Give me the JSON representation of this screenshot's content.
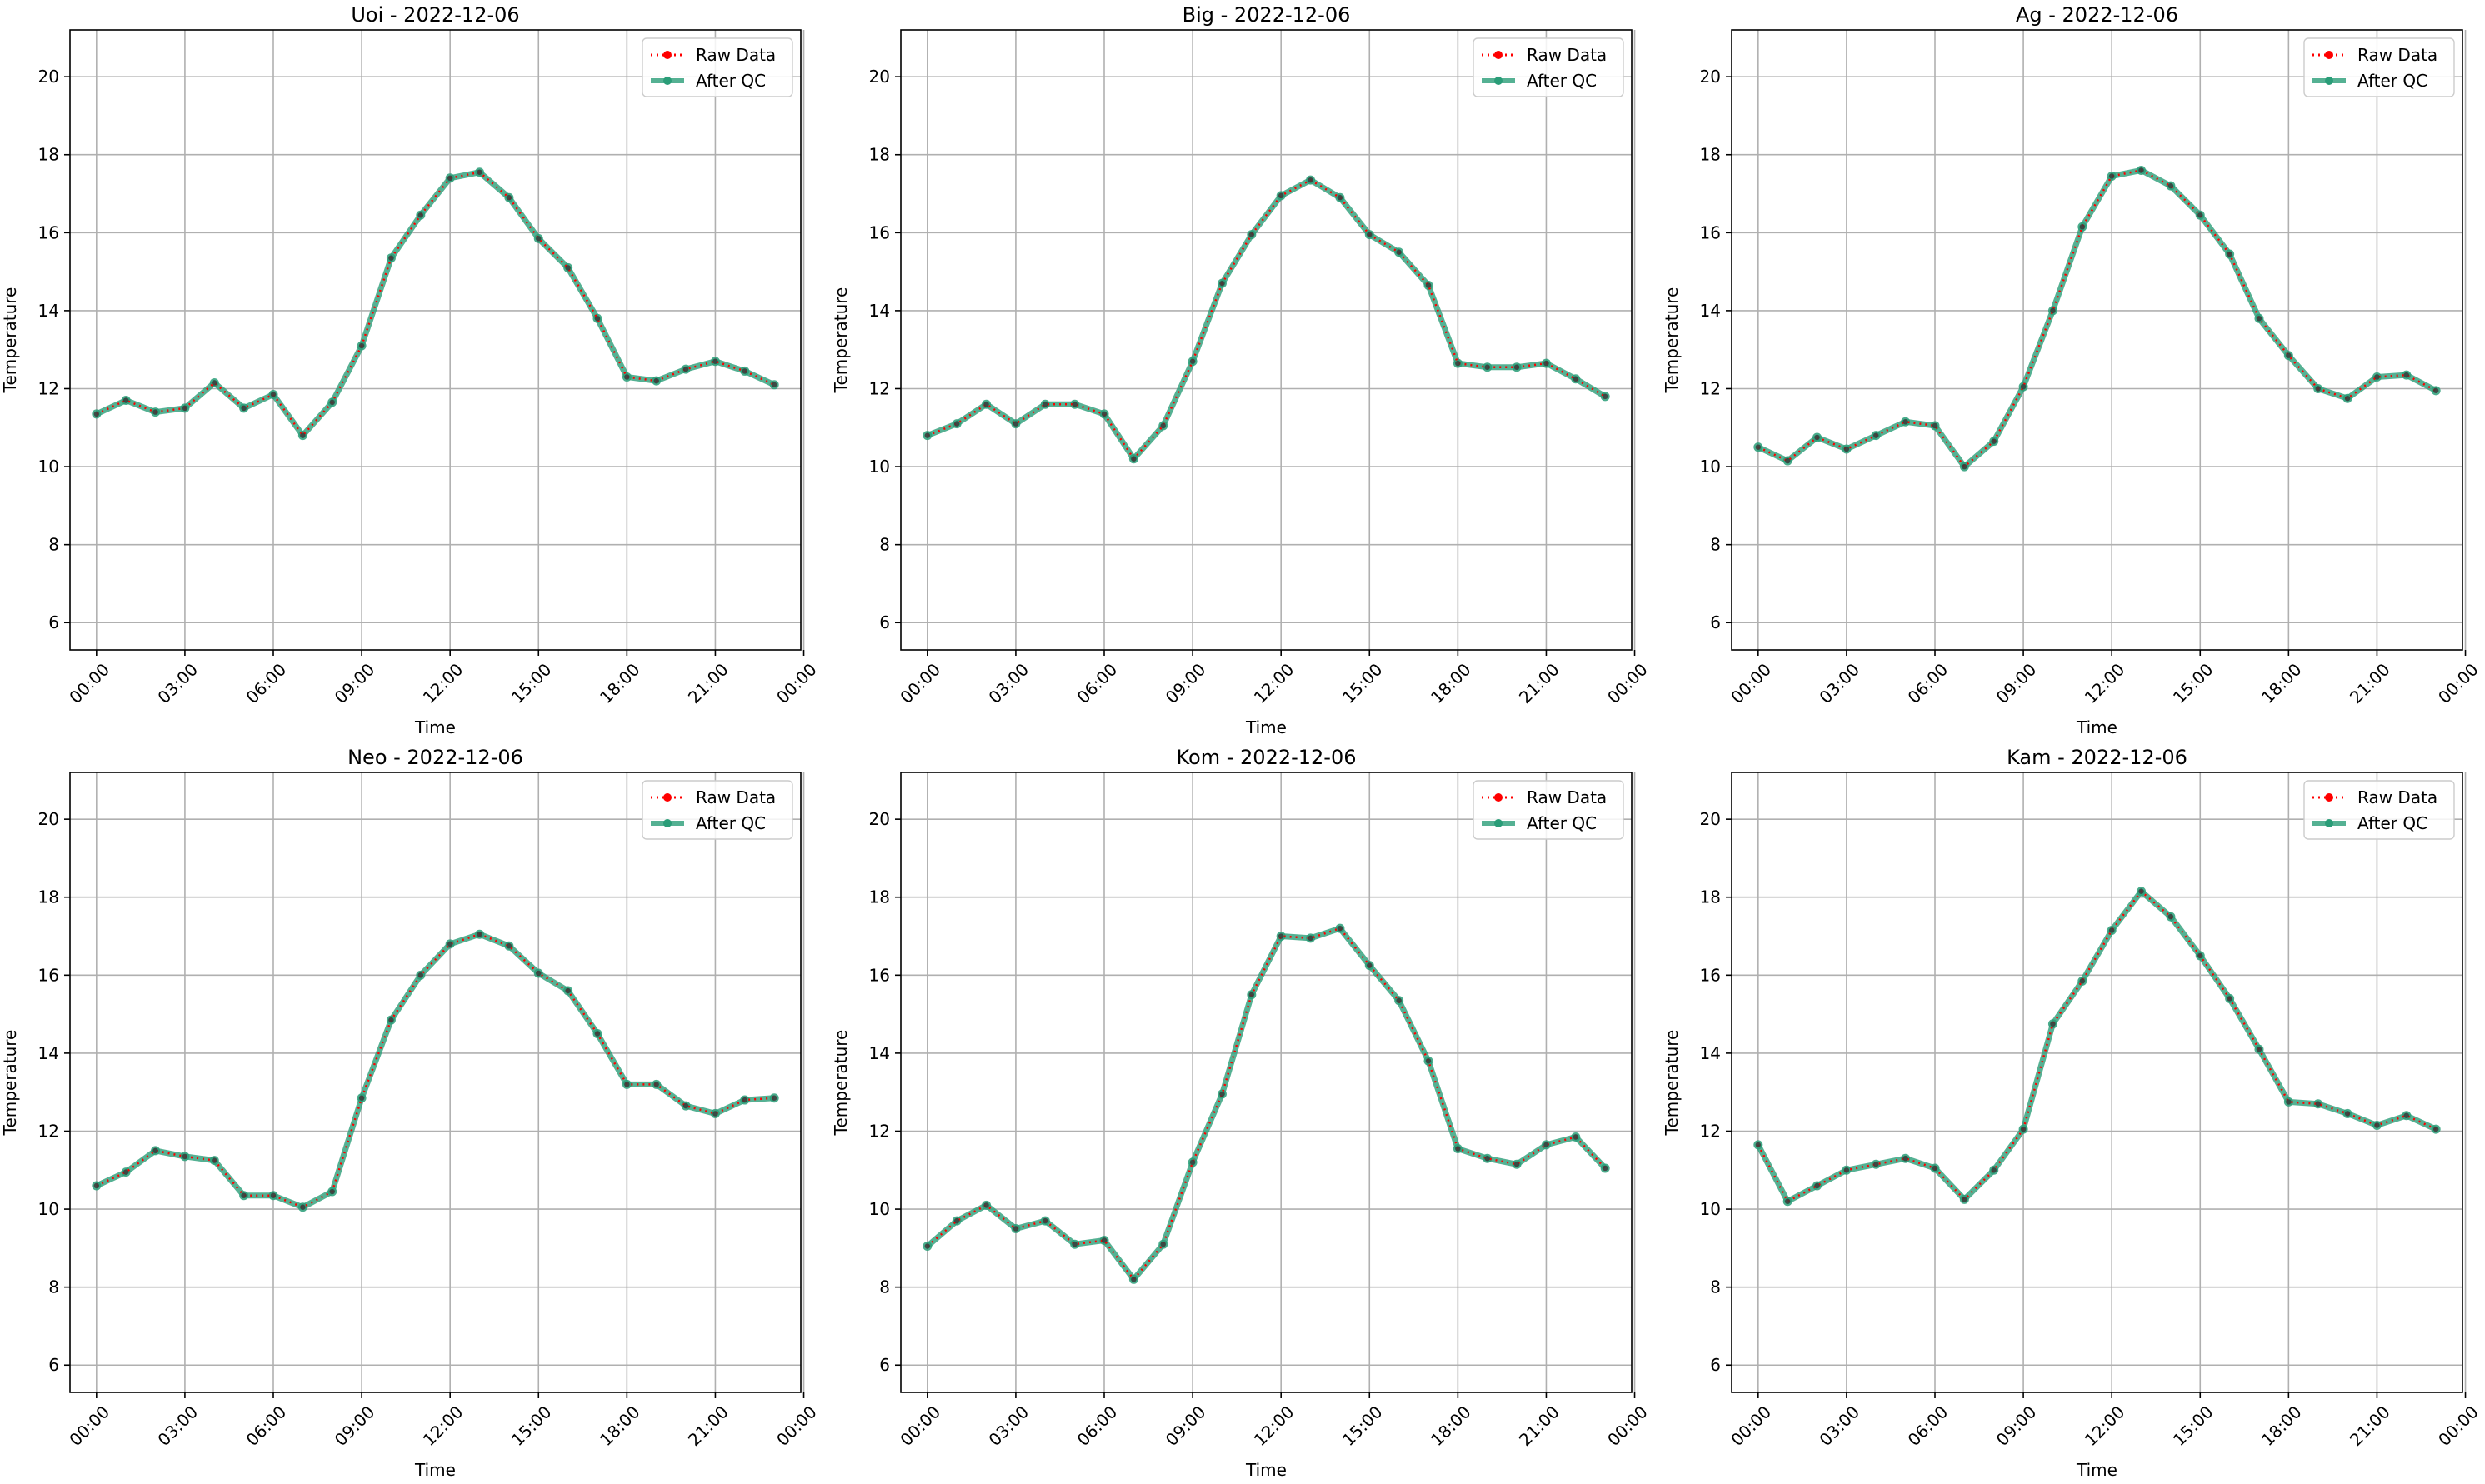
{
  "figure": {
    "legend": {
      "raw_label": "Raw Data",
      "qc_label": "After QC",
      "raw_color": "#ff0000",
      "qc_color": "#2a9d78",
      "placement": "upper right"
    }
  },
  "chart_data": [
    {
      "type": "line",
      "title": "Uoi - 2022-12-06",
      "xlabel": "Time",
      "ylabel": "Temperature",
      "ylim": [
        5.3,
        21.2
      ],
      "xlim": [
        -0.9,
        23.9
      ],
      "yticks": [
        6,
        8,
        10,
        12,
        14,
        16,
        18,
        20
      ],
      "xtick_labels": [
        "00:00",
        "03:00",
        "06:00",
        "09:00",
        "12:00",
        "15:00",
        "18:00",
        "21:00",
        "00:00"
      ],
      "grid": true,
      "x": [
        0,
        1,
        2,
        3,
        4,
        5,
        6,
        7,
        8,
        9,
        10,
        11,
        12,
        13,
        14,
        15,
        16,
        17,
        18,
        19,
        20,
        21,
        22,
        23
      ],
      "series": [
        {
          "name": "Raw Data",
          "values": [
            11.35,
            11.7,
            11.4,
            11.5,
            12.15,
            11.5,
            11.85,
            10.8,
            11.65,
            13.1,
            15.35,
            16.45,
            17.4,
            17.55,
            16.9,
            15.85,
            15.1,
            13.8,
            12.3,
            12.2,
            12.5,
            12.7,
            12.45,
            12.1
          ]
        },
        {
          "name": "After QC",
          "values": [
            11.35,
            11.7,
            11.4,
            11.5,
            12.15,
            11.5,
            11.85,
            10.8,
            11.65,
            13.1,
            15.35,
            16.45,
            17.4,
            17.55,
            16.9,
            15.85,
            15.1,
            13.8,
            12.3,
            12.2,
            12.5,
            12.7,
            12.45,
            12.1
          ]
        }
      ]
    },
    {
      "type": "line",
      "title": "Big - 2022-12-06",
      "xlabel": "Time",
      "ylabel": "Temperature",
      "ylim": [
        5.3,
        21.2
      ],
      "xlim": [
        -0.9,
        23.9
      ],
      "yticks": [
        6,
        8,
        10,
        12,
        14,
        16,
        18,
        20
      ],
      "xtick_labels": [
        "00:00",
        "03:00",
        "06:00",
        "09:00",
        "12:00",
        "15:00",
        "18:00",
        "21:00",
        "00:00"
      ],
      "grid": true,
      "x": [
        0,
        1,
        2,
        3,
        4,
        5,
        6,
        7,
        8,
        9,
        10,
        11,
        12,
        13,
        14,
        15,
        16,
        17,
        18,
        19,
        20,
        21,
        22,
        23
      ],
      "series": [
        {
          "name": "Raw Data",
          "values": [
            10.8,
            11.1,
            11.6,
            11.1,
            11.6,
            11.6,
            11.35,
            10.2,
            11.05,
            12.7,
            14.7,
            15.95,
            16.95,
            17.35,
            16.9,
            15.95,
            15.5,
            14.65,
            12.65,
            12.55,
            12.55,
            12.65,
            12.25,
            11.8
          ]
        },
        {
          "name": "After QC",
          "values": [
            10.8,
            11.1,
            11.6,
            11.1,
            11.6,
            11.6,
            11.35,
            10.2,
            11.05,
            12.7,
            14.7,
            15.95,
            16.95,
            17.35,
            16.9,
            15.95,
            15.5,
            14.65,
            12.65,
            12.55,
            12.55,
            12.65,
            12.25,
            11.8
          ]
        }
      ]
    },
    {
      "type": "line",
      "title": "Ag - 2022-12-06",
      "xlabel": "Time",
      "ylabel": "Temperature",
      "ylim": [
        5.3,
        21.2
      ],
      "xlim": [
        -0.9,
        23.9
      ],
      "yticks": [
        6,
        8,
        10,
        12,
        14,
        16,
        18,
        20
      ],
      "xtick_labels": [
        "00:00",
        "03:00",
        "06:00",
        "09:00",
        "12:00",
        "15:00",
        "18:00",
        "21:00",
        "00:00"
      ],
      "grid": true,
      "x": [
        0,
        1,
        2,
        3,
        4,
        5,
        6,
        7,
        8,
        9,
        10,
        11,
        12,
        13,
        14,
        15,
        16,
        17,
        18,
        19,
        20,
        21,
        22,
        23
      ],
      "series": [
        {
          "name": "Raw Data",
          "values": [
            10.5,
            10.15,
            10.75,
            10.45,
            10.8,
            11.15,
            11.05,
            10.0,
            10.65,
            12.05,
            14.0,
            16.15,
            17.45,
            17.6,
            17.2,
            16.45,
            15.45,
            13.8,
            12.85,
            12.0,
            11.75,
            12.3,
            12.35,
            11.95
          ]
        },
        {
          "name": "After QC",
          "values": [
            10.5,
            10.15,
            10.75,
            10.45,
            10.8,
            11.15,
            11.05,
            10.0,
            10.65,
            12.05,
            14.0,
            16.15,
            17.45,
            17.6,
            17.2,
            16.45,
            15.45,
            13.8,
            12.85,
            12.0,
            11.75,
            12.3,
            12.35,
            11.95
          ]
        }
      ]
    },
    {
      "type": "line",
      "title": "Neo - 2022-12-06",
      "xlabel": "Time",
      "ylabel": "Temperature",
      "ylim": [
        5.3,
        21.2
      ],
      "xlim": [
        -0.9,
        23.9
      ],
      "yticks": [
        6,
        8,
        10,
        12,
        14,
        16,
        18,
        20
      ],
      "xtick_labels": [
        "00:00",
        "03:00",
        "06:00",
        "09:00",
        "12:00",
        "15:00",
        "18:00",
        "21:00",
        "00:00"
      ],
      "grid": true,
      "x": [
        0,
        1,
        2,
        3,
        4,
        5,
        6,
        7,
        8,
        9,
        10,
        11,
        12,
        13,
        14,
        15,
        16,
        17,
        18,
        19,
        20,
        21,
        22,
        23
      ],
      "series": [
        {
          "name": "Raw Data",
          "values": [
            10.6,
            10.95,
            11.5,
            11.35,
            11.25,
            10.35,
            10.35,
            10.05,
            10.45,
            12.85,
            14.85,
            16.0,
            16.8,
            17.05,
            16.75,
            16.05,
            15.6,
            14.5,
            13.2,
            13.2,
            12.65,
            12.45,
            12.8,
            12.85
          ]
        },
        {
          "name": "After QC",
          "values": [
            10.6,
            10.95,
            11.5,
            11.35,
            11.25,
            10.35,
            10.35,
            10.05,
            10.45,
            12.85,
            14.85,
            16.0,
            16.8,
            17.05,
            16.75,
            16.05,
            15.6,
            14.5,
            13.2,
            13.2,
            12.65,
            12.45,
            12.8,
            12.85
          ]
        }
      ]
    },
    {
      "type": "line",
      "title": "Kom - 2022-12-06",
      "xlabel": "Time",
      "ylabel": "Temperature",
      "ylim": [
        5.3,
        21.2
      ],
      "xlim": [
        -0.9,
        23.9
      ],
      "yticks": [
        6,
        8,
        10,
        12,
        14,
        16,
        18,
        20
      ],
      "xtick_labels": [
        "00:00",
        "03:00",
        "06:00",
        "09:00",
        "12:00",
        "15:00",
        "18:00",
        "21:00",
        "00:00"
      ],
      "grid": true,
      "x": [
        0,
        1,
        2,
        3,
        4,
        5,
        6,
        7,
        8,
        9,
        10,
        11,
        12,
        13,
        14,
        15,
        16,
        17,
        18,
        19,
        20,
        21,
        22,
        23
      ],
      "series": [
        {
          "name": "Raw Data",
          "values": [
            9.05,
            9.7,
            10.1,
            9.5,
            9.7,
            9.1,
            9.2,
            8.2,
            9.1,
            11.2,
            12.95,
            15.5,
            17.0,
            16.95,
            17.2,
            16.25,
            15.35,
            13.8,
            11.55,
            11.3,
            11.15,
            11.65,
            11.85,
            11.05
          ]
        },
        {
          "name": "After QC",
          "values": [
            9.05,
            9.7,
            10.1,
            9.5,
            9.7,
            9.1,
            9.2,
            8.2,
            9.1,
            11.2,
            12.95,
            15.5,
            17.0,
            16.95,
            17.2,
            16.25,
            15.35,
            13.8,
            11.55,
            11.3,
            11.15,
            11.65,
            11.85,
            11.05
          ]
        }
      ]
    },
    {
      "type": "line",
      "title": "Kam - 2022-12-06",
      "xlabel": "Time",
      "ylabel": "Temperature",
      "ylim": [
        5.3,
        21.2
      ],
      "xlim": [
        -0.9,
        23.9
      ],
      "yticks": [
        6,
        8,
        10,
        12,
        14,
        16,
        18,
        20
      ],
      "xtick_labels": [
        "00:00",
        "03:00",
        "06:00",
        "09:00",
        "12:00",
        "15:00",
        "18:00",
        "21:00",
        "00:00"
      ],
      "grid": true,
      "x": [
        0,
        1,
        2,
        3,
        4,
        5,
        6,
        7,
        8,
        9,
        10,
        11,
        12,
        13,
        14,
        15,
        16,
        17,
        18,
        19,
        20,
        21,
        22,
        23
      ],
      "series": [
        {
          "name": "Raw Data",
          "values": [
            11.65,
            10.2,
            10.6,
            11.0,
            11.15,
            11.3,
            11.05,
            10.25,
            11.0,
            12.05,
            14.75,
            15.85,
            17.15,
            18.15,
            17.5,
            16.5,
            15.4,
            14.1,
            12.75,
            12.7,
            12.45,
            12.15,
            12.4,
            12.05
          ]
        },
        {
          "name": "After QC",
          "values": [
            11.65,
            10.2,
            10.6,
            11.0,
            11.15,
            11.3,
            11.05,
            10.25,
            11.0,
            12.05,
            14.75,
            15.85,
            17.15,
            18.15,
            17.5,
            16.5,
            15.4,
            14.1,
            12.75,
            12.7,
            12.45,
            12.15,
            12.4,
            12.05
          ]
        }
      ]
    }
  ]
}
